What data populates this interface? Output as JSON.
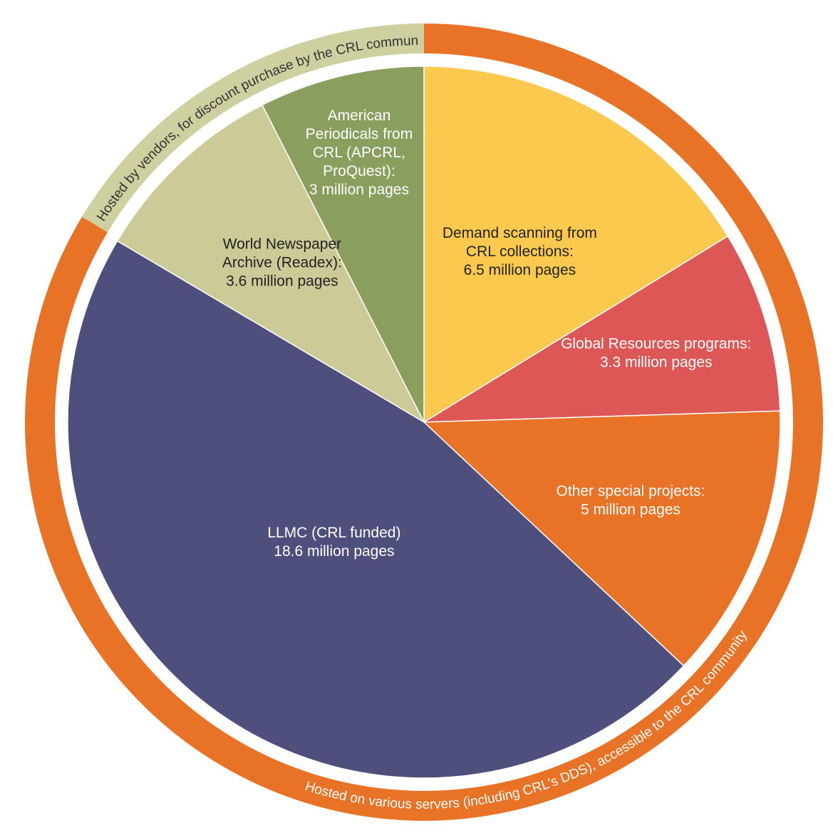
{
  "chart_data": {
    "type": "pie",
    "slices": [
      {
        "label": [
          "Demand scanning from",
          "CRL collections:",
          "6.5 million pages"
        ],
        "value": 6.5,
        "color": "#FBC94E",
        "text_color": "#222222",
        "bold": true
      },
      {
        "label": [
          "Global Resources programs:",
          "3.3 million pages"
        ],
        "value": 3.3,
        "color": "#DC5756",
        "text_color": "#ffffff",
        "bold": false
      },
      {
        "label": [
          "Other special projects:",
          "5 million pages"
        ],
        "value": 5,
        "color": "#E87327",
        "text_color": "#ffffff",
        "bold": false
      },
      {
        "label": [
          "LLMC (CRL funded)",
          "18.6 million pages"
        ],
        "value": 18.6,
        "color": "#4F4F7E",
        "text_color": "#ffffff",
        "bold": false
      },
      {
        "label": [
          "World Newspaper",
          "Archive (Readex):",
          "3.6 million pages"
        ],
        "value": 3.6,
        "color": "#CCCA97",
        "text_color": "#222222",
        "bold": false
      },
      {
        "label": [
          "American",
          "Periodicals from",
          "CRL (APCRL,",
          "ProQuest):",
          "3 million pages"
        ],
        "value": 3,
        "color": "#8A9E5E",
        "text_color": "#ffffff",
        "bold": false
      }
    ],
    "rings": [
      {
        "label": "Hosted by vendors, for discount purchase by the CRL community",
        "color": "#CED0A0",
        "text_color": "#333333",
        "covers": [
          "World Newspaper Archive (Readex)",
          "American Periodicals from CRL (APCRL, ProQuest)"
        ]
      },
      {
        "label": "Hosted on various servers (including CRL's DDS), accessible to the CRL community",
        "color": "#E87327",
        "text_color": "#ffffff",
        "covers": [
          "Demand scanning from CRL collections",
          "Global Resources programs",
          "Other special projects",
          "LLMC (CRL funded)"
        ]
      }
    ]
  }
}
